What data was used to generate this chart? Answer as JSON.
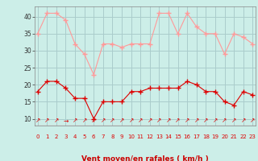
{
  "x": [
    0,
    1,
    2,
    3,
    4,
    5,
    6,
    7,
    8,
    9,
    10,
    11,
    12,
    13,
    14,
    15,
    16,
    17,
    18,
    19,
    20,
    21,
    22,
    23
  ],
  "wind_mean": [
    18,
    21,
    21,
    19,
    16,
    16,
    10,
    15,
    15,
    15,
    18,
    18,
    19,
    19,
    19,
    19,
    21,
    20,
    18,
    18,
    15,
    14,
    18,
    17
  ],
  "wind_gust": [
    35,
    41,
    41,
    39,
    32,
    29,
    23,
    32,
    32,
    31,
    32,
    32,
    32,
    41,
    41,
    35,
    41,
    37,
    35,
    35,
    29,
    35,
    34,
    32
  ],
  "bg_color": "#cceee8",
  "grid_color": "#aacccc",
  "mean_color": "#dd0000",
  "gust_color": "#ff9999",
  "xlabel": "Vent moyen/en rafales ( km/h )",
  "xlabel_color": "#cc0000",
  "yticks": [
    10,
    15,
    20,
    25,
    30,
    35,
    40
  ],
  "xtick_labels": [
    "0",
    "1",
    "2",
    "3",
    "4",
    "5",
    "6",
    "7",
    "8",
    "9",
    "10",
    "11",
    "12",
    "13",
    "14",
    "15",
    "16",
    "17",
    "18",
    "19",
    "20",
    "21",
    "22",
    "23"
  ],
  "ylim": [
    8,
    43
  ],
  "xlim": [
    -0.3,
    23.3
  ],
  "arrow_chars": [
    "↗",
    "↗",
    "↗",
    "→",
    "↗",
    "↗",
    "↗",
    "↗",
    "↗",
    "↗",
    "↗",
    "↗",
    "↗",
    "↗",
    "↗",
    "↗",
    "↗",
    "↗",
    "↗",
    "↗",
    "↗",
    "↗",
    "↗",
    "↗"
  ]
}
